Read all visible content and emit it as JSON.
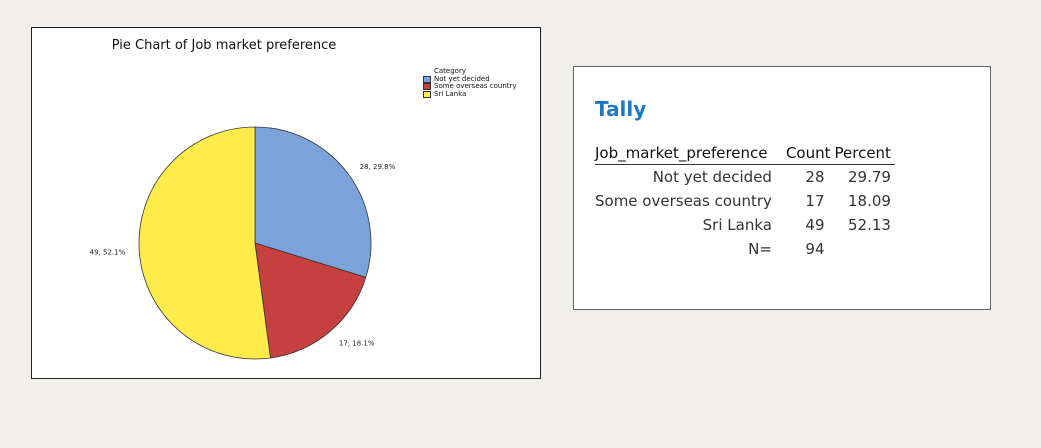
{
  "chart_data": {
    "type": "pie",
    "title": "Pie Chart of Job market preference",
    "legend": {
      "title": "Category",
      "placement": "top-right",
      "entries": [
        {
          "label": "Not yet decided",
          "color": "#7ba3d9"
        },
        {
          "label": "Some overseas country",
          "color": "#c64040"
        },
        {
          "label": "Sri Lanka",
          "color": "#ffeb4a"
        }
      ]
    },
    "slices": [
      {
        "category": "Not yet decided",
        "value": 28,
        "percent": 29.8,
        "label": "28, 29.8%",
        "color": "#7ba3d9"
      },
      {
        "category": "Some overseas country",
        "value": 17,
        "percent": 18.1,
        "label": "17, 18.1%",
        "color": "#c64040"
      },
      {
        "category": "Sri Lanka",
        "value": 49,
        "percent": 52.1,
        "label": "49, 52.1%",
        "color": "#ffeb4a"
      }
    ]
  },
  "tally": {
    "title": "Tally",
    "headers": [
      "Job_market_preference",
      "Count",
      "Percent"
    ],
    "rows": [
      {
        "label": "Not yet decided",
        "count": "28",
        "percent": "29.79"
      },
      {
        "label": "Some overseas country",
        "count": "17",
        "percent": "18.09"
      },
      {
        "label": "Sri Lanka",
        "count": "49",
        "percent": "52.13"
      },
      {
        "label": "N=",
        "count": "94",
        "percent": ""
      }
    ]
  }
}
